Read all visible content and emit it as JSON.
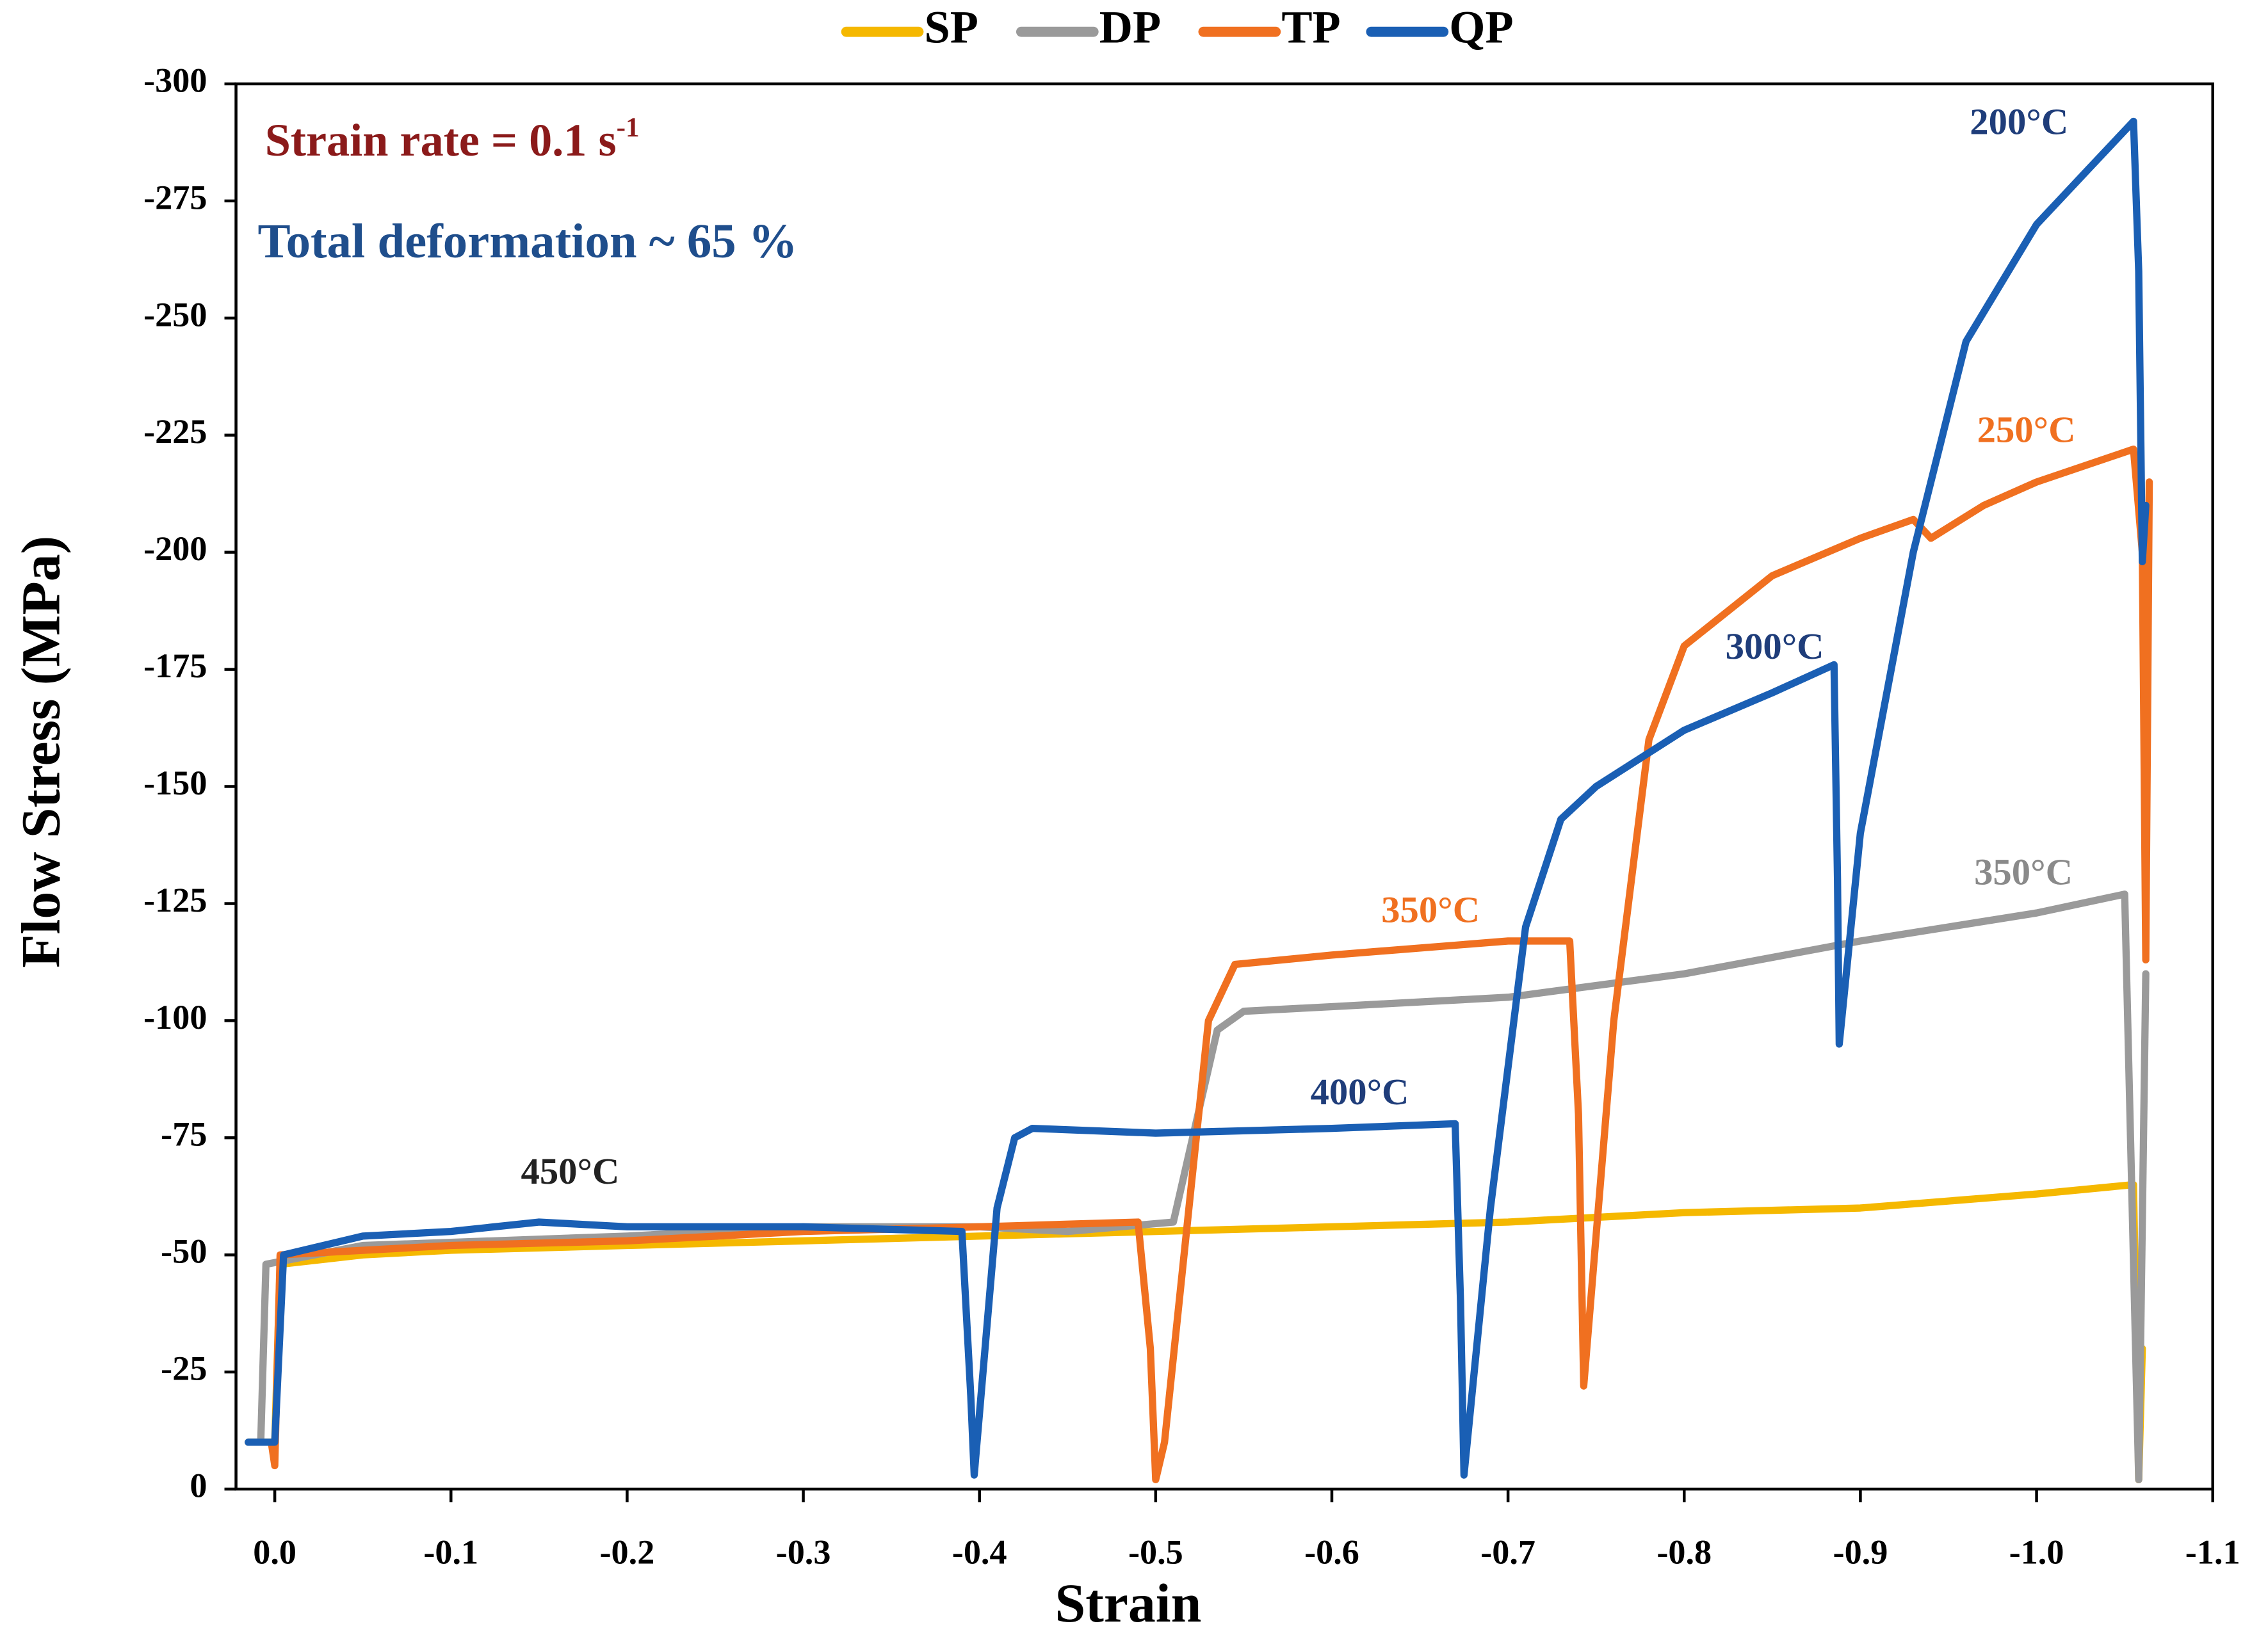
{
  "chart_data": {
    "type": "line",
    "xlabel": "Strain",
    "ylabel": "Flow Stress (MPa)",
    "xlim": [
      0.022,
      -1.1
    ],
    "xticks": [
      {
        "value": 0,
        "label": "0.0"
      },
      -0.1,
      -0.2,
      -0.3,
      -0.4,
      -0.5,
      -0.6,
      -0.7,
      -0.8,
      -0.9,
      {
        "value": -1,
        "label": "-1.0"
      },
      -1.1
    ],
    "ylim": [
      0,
      -300
    ],
    "yticks": [
      0,
      -25,
      -50,
      -75,
      -100,
      -125,
      -150,
      -175,
      -200,
      -225,
      -250,
      -275,
      -300
    ],
    "grid": false,
    "legend": "top",
    "series": [
      {
        "name": "SP",
        "color": "#f5b800",
        "x": [
          0.015,
          0.0,
          -0.003,
          -0.05,
          -0.1,
          -0.2,
          -0.3,
          -0.4,
          -0.5,
          -0.6,
          -0.7,
          -0.8,
          -0.9,
          -1.0,
          -1.055,
          -1.058,
          -1.06
        ],
        "values": [
          -10,
          -10,
          -48,
          -50,
          -51,
          -52,
          -53,
          -54,
          -55,
          -56,
          -57,
          -59,
          -60,
          -63,
          -65,
          -2,
          -30
        ]
      },
      {
        "name": "DP",
        "color": "#9a9a9a",
        "x": [
          0.015,
          0.008,
          0.005,
          -0.05,
          -0.2,
          -0.3,
          -0.4,
          -0.45,
          -0.51,
          -0.535,
          -0.55,
          -0.6,
          -0.7,
          -0.8,
          -0.9,
          -1.0,
          -1.05,
          -1.058,
          -1.062
        ],
        "values": [
          -10,
          -10,
          -48,
          -52,
          -54,
          -56,
          -56,
          -55,
          -57,
          -98,
          -102,
          -103,
          -105,
          -110,
          -117,
          -123,
          -127,
          -2,
          -110
        ]
      },
      {
        "name": "TP",
        "color": "#f07020",
        "x": [
          0.002,
          0.0,
          -0.003,
          -0.1,
          -0.2,
          -0.3,
          -0.4,
          -0.49,
          -0.497,
          -0.5,
          -0.505,
          -0.53,
          -0.545,
          -0.6,
          -0.7,
          -0.735,
          -0.74,
          -0.743,
          -0.76,
          -0.78,
          -0.8,
          -0.85,
          -0.9,
          -0.93,
          -0.94,
          -0.97,
          -1.0,
          -1.055,
          -1.06,
          -1.062,
          -1.064
        ],
        "values": [
          -10,
          -5,
          -50,
          -52,
          -53,
          -55,
          -56,
          -57,
          -30,
          -2,
          -10,
          -100,
          -112,
          -114,
          -117,
          -117,
          -80,
          -22,
          -100,
          -160,
          -180,
          -195,
          -203,
          -207,
          -203,
          -210,
          -215,
          -222,
          -200,
          -113,
          -215
        ]
      },
      {
        "name": "QP",
        "color": "#1a5fb4",
        "x": [
          0.015,
          0.0,
          -0.005,
          -0.05,
          -0.1,
          -0.15,
          -0.2,
          -0.3,
          -0.39,
          -0.395,
          -0.397,
          -0.41,
          -0.42,
          -0.43,
          -0.5,
          -0.6,
          -0.67,
          -0.673,
          -0.675,
          -0.69,
          -0.71,
          -0.73,
          -0.75,
          -0.8,
          -0.85,
          -0.885,
          -0.887,
          -0.888,
          -0.9,
          -0.93,
          -0.96,
          -1.0,
          -1.03,
          -1.055,
          -1.058,
          -1.06,
          -1.062
        ],
        "values": [
          -10,
          -10,
          -50,
          -54,
          -55,
          -57,
          -56,
          -56,
          -55,
          -20,
          -3,
          -60,
          -75,
          -77,
          -76,
          -77,
          -78,
          -40,
          -3,
          -60,
          -120,
          -143,
          -150,
          -162,
          -170,
          -176,
          -130,
          -95,
          -140,
          -200,
          -245,
          -270,
          -282,
          -292,
          -260,
          -198,
          -210
        ]
      }
    ],
    "annotations": [
      {
        "text": "Strain rate = 0.1 s",
        "superscript": "-1",
        "color": "#8b1a1a"
      },
      {
        "text": "Total deformation ~ 65 %",
        "color": "#1f4e8c"
      },
      {
        "text": "450°C",
        "color": "#222222"
      },
      {
        "text": "400°C",
        "color": "#1f3d7a"
      },
      {
        "text": "350°C",
        "color": "#f07020"
      },
      {
        "text": "300°C",
        "color": "#1f3d7a"
      },
      {
        "text": "200°C",
        "color": "#1f3d7a"
      },
      {
        "text": "250°C",
        "color": "#f07020"
      },
      {
        "text": "350°C",
        "color": "#8a8a8a"
      }
    ]
  }
}
